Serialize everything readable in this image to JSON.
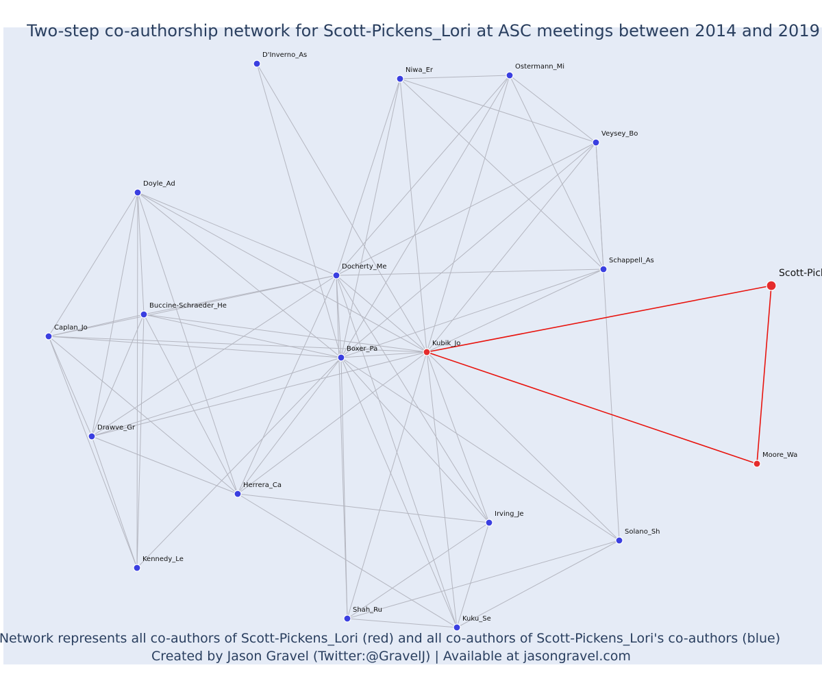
{
  "title": "Two-step co-authorship network for Scott-Pickens_Lori at ASC meetings between 2014 and 2019",
  "footer_line1": "Network represents all co-authors of Scott-Pickens_Lori (red) and all co-authors of Scott-Pickens_Lori's co-authors (blue)",
  "footer_line2": "Created by Jason Gravel (Twitter:@GravelJ) | Available at jasongravel.com",
  "colors": {
    "background": "#e5ebf6",
    "edge": "#b4b6c0",
    "edge_focal": "#e8140e",
    "node_blue": "#3a3fe0",
    "node_red": "#e52c2c",
    "title": "#2a3f5f"
  },
  "focal_author": "Scott-Pickens_Lori",
  "nodes": [
    {
      "id": "DInverno_As",
      "label": "D'Inverno_As",
      "group": "blue"
    },
    {
      "id": "Niwa_Er",
      "label": "Niwa_Er",
      "group": "blue"
    },
    {
      "id": "Ostermann_Mi",
      "label": "Ostermann_Mi",
      "group": "blue"
    },
    {
      "id": "Veysey_Bo",
      "label": "Veysey_Bo",
      "group": "blue"
    },
    {
      "id": "Doyle_Ad",
      "label": "Doyle_Ad",
      "group": "blue"
    },
    {
      "id": "Schappell_As",
      "label": "Schappell_As",
      "group": "blue"
    },
    {
      "id": "Docherty_Me",
      "label": "Docherty_Me",
      "group": "blue"
    },
    {
      "id": "Scott-Pickens_Lori",
      "label": "Scott-Pickens_Lori",
      "group": "focal"
    },
    {
      "id": "Buccine-Schraeder_He",
      "label": "Buccine-Schraeder_He",
      "group": "blue"
    },
    {
      "id": "Caplan_Jo",
      "label": "Caplan_Jo",
      "group": "blue"
    },
    {
      "id": "Kubik_Jo",
      "label": "Kubik_Jo",
      "group": "red"
    },
    {
      "id": "Boxer_Pa",
      "label": "Boxer_Pa",
      "group": "blue"
    },
    {
      "id": "Drawve_Gr",
      "label": "Drawve_Gr",
      "group": "blue"
    },
    {
      "id": "Moore_Wa",
      "label": "Moore_Wa",
      "group": "red"
    },
    {
      "id": "Herrera_Ca",
      "label": "Herrera_Ca",
      "group": "blue"
    },
    {
      "id": "Irving_Je",
      "label": "Irving_Je",
      "group": "blue"
    },
    {
      "id": "Solano_Sh",
      "label": "Solano_Sh",
      "group": "blue"
    },
    {
      "id": "Kennedy_Le",
      "label": "Kennedy_Le",
      "group": "blue"
    },
    {
      "id": "Shah_Ru",
      "label": "Shah_Ru",
      "group": "blue"
    },
    {
      "id": "Kuku_Se",
      "label": "Kuku_Se",
      "group": "blue"
    }
  ],
  "edges": [
    [
      "DInverno_As",
      "Boxer_Pa"
    ],
    [
      "DInverno_As",
      "Kubik_Jo"
    ],
    [
      "Niwa_Er",
      "Ostermann_Mi"
    ],
    [
      "Niwa_Er",
      "Veysey_Bo"
    ],
    [
      "Niwa_Er",
      "Docherty_Me"
    ],
    [
      "Niwa_Er",
      "Boxer_Pa"
    ],
    [
      "Niwa_Er",
      "Kubik_Jo"
    ],
    [
      "Niwa_Er",
      "Schappell_As"
    ],
    [
      "Ostermann_Mi",
      "Veysey_Bo"
    ],
    [
      "Ostermann_Mi",
      "Schappell_As"
    ],
    [
      "Ostermann_Mi",
      "Docherty_Me"
    ],
    [
      "Ostermann_Mi",
      "Boxer_Pa"
    ],
    [
      "Ostermann_Mi",
      "Kubik_Jo"
    ],
    [
      "Veysey_Bo",
      "Schappell_As"
    ],
    [
      "Veysey_Bo",
      "Docherty_Me"
    ],
    [
      "Veysey_Bo",
      "Boxer_Pa"
    ],
    [
      "Veysey_Bo",
      "Kubik_Jo"
    ],
    [
      "Veysey_Bo",
      "Solano_Sh"
    ],
    [
      "Schappell_As",
      "Docherty_Me"
    ],
    [
      "Schappell_As",
      "Boxer_Pa"
    ],
    [
      "Schappell_As",
      "Kubik_Jo"
    ],
    [
      "Doyle_Ad",
      "Caplan_Jo"
    ],
    [
      "Doyle_Ad",
      "Buccine-Schraeder_He"
    ],
    [
      "Doyle_Ad",
      "Drawve_Gr"
    ],
    [
      "Doyle_Ad",
      "Kennedy_Le"
    ],
    [
      "Doyle_Ad",
      "Herrera_Ca"
    ],
    [
      "Doyle_Ad",
      "Docherty_Me"
    ],
    [
      "Doyle_Ad",
      "Boxer_Pa"
    ],
    [
      "Doyle_Ad",
      "Kubik_Jo"
    ],
    [
      "Buccine-Schraeder_He",
      "Caplan_Jo"
    ],
    [
      "Buccine-Schraeder_He",
      "Docherty_Me"
    ],
    [
      "Buccine-Schraeder_He",
      "Boxer_Pa"
    ],
    [
      "Buccine-Schraeder_He",
      "Kubik_Jo"
    ],
    [
      "Buccine-Schraeder_He",
      "Drawve_Gr"
    ],
    [
      "Buccine-Schraeder_He",
      "Herrera_Ca"
    ],
    [
      "Buccine-Schraeder_He",
      "Kennedy_Le"
    ],
    [
      "Caplan_Jo",
      "Docherty_Me"
    ],
    [
      "Caplan_Jo",
      "Boxer_Pa"
    ],
    [
      "Caplan_Jo",
      "Kubik_Jo"
    ],
    [
      "Caplan_Jo",
      "Drawve_Gr"
    ],
    [
      "Caplan_Jo",
      "Herrera_Ca"
    ],
    [
      "Caplan_Jo",
      "Kennedy_Le"
    ],
    [
      "Docherty_Me",
      "Boxer_Pa"
    ],
    [
      "Docherty_Me",
      "Kubik_Jo"
    ],
    [
      "Docherty_Me",
      "Herrera_Ca"
    ],
    [
      "Docherty_Me",
      "Drawve_Gr"
    ],
    [
      "Docherty_Me",
      "Irving_Je"
    ],
    [
      "Docherty_Me",
      "Shah_Ru"
    ],
    [
      "Docherty_Me",
      "Kuku_Se"
    ],
    [
      "Boxer_Pa",
      "Kubik_Jo"
    ],
    [
      "Boxer_Pa",
      "Drawve_Gr"
    ],
    [
      "Boxer_Pa",
      "Herrera_Ca"
    ],
    [
      "Boxer_Pa",
      "Irving_Je"
    ],
    [
      "Boxer_Pa",
      "Solano_Sh"
    ],
    [
      "Boxer_Pa",
      "Shah_Ru"
    ],
    [
      "Boxer_Pa",
      "Kuku_Se"
    ],
    [
      "Boxer_Pa",
      "Kennedy_Le"
    ],
    [
      "Kubik_Jo",
      "Drawve_Gr"
    ],
    [
      "Kubik_Jo",
      "Herrera_Ca"
    ],
    [
      "Kubik_Jo",
      "Irving_Je"
    ],
    [
      "Kubik_Jo",
      "Solano_Sh"
    ],
    [
      "Kubik_Jo",
      "Shah_Ru"
    ],
    [
      "Kubik_Jo",
      "Kuku_Se"
    ],
    [
      "Drawve_Gr",
      "Herrera_Ca"
    ],
    [
      "Drawve_Gr",
      "Kennedy_Le"
    ],
    [
      "Herrera_Ca",
      "Irving_Je"
    ],
    [
      "Herrera_Ca",
      "Kuku_Se"
    ],
    [
      "Irving_Je",
      "Shah_Ru"
    ],
    [
      "Irving_Je",
      "Kuku_Se"
    ],
    [
      "Solano_Sh",
      "Shah_Ru"
    ],
    [
      "Solano_Sh",
      "Kuku_Se"
    ],
    [
      "Shah_Ru",
      "Kuku_Se"
    ]
  ],
  "focal_edges": [
    [
      "Kubik_Jo",
      "Scott-Pickens_Lori"
    ],
    [
      "Kubik_Jo",
      "Moore_Wa"
    ],
    [
      "Scott-Pickens_Lori",
      "Moore_Wa"
    ]
  ]
}
